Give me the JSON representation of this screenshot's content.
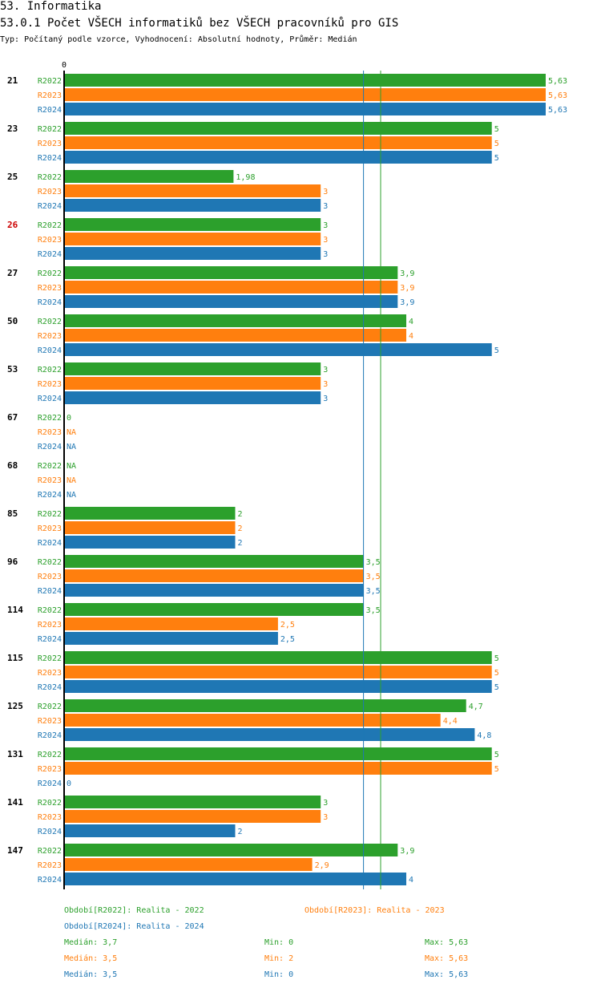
{
  "header": {
    "title": "53. Informatika",
    "subtitle": "53.0.1 Počet VŠECH informatiků bez VŠECH pracovníků pro GIS",
    "meta": "Typ: Počítaný podle vzorce, Vyhodnocení: Absolutní hodnoty, Průměr: Medián"
  },
  "colors": {
    "R2022": "#2ca02c",
    "R2023": "#ff7f0e",
    "R2024": "#1f77b4",
    "highlight": "#cc0000",
    "text": "#000000"
  },
  "chart_data": {
    "type": "bar",
    "orientation": "horizontal",
    "axis_zero_label": "0",
    "xlim": [
      0,
      5.63
    ],
    "highlight_category": "26",
    "categories": [
      "21",
      "23",
      "25",
      "26",
      "27",
      "50",
      "53",
      "67",
      "68",
      "85",
      "96",
      "114",
      "115",
      "125",
      "131",
      "141",
      "147"
    ],
    "series": [
      {
        "name": "R2022",
        "values": [
          5.63,
          5,
          1.98,
          3,
          3.9,
          4,
          3,
          0,
          null,
          2,
          3.5,
          3.5,
          5,
          4.7,
          5,
          3,
          3.9
        ],
        "labels": [
          "5,63",
          "5",
          "1,98",
          "3",
          "3,9",
          "4",
          "3",
          "0",
          "NA",
          "2",
          "3,5",
          "3,5",
          "5",
          "4,7",
          "5",
          "3",
          "3,9"
        ]
      },
      {
        "name": "R2023",
        "values": [
          5.63,
          5,
          3,
          3,
          3.9,
          4,
          3,
          null,
          null,
          2,
          3.5,
          2.5,
          5,
          4.4,
          5,
          3,
          2.9
        ],
        "labels": [
          "5,63",
          "5",
          "3",
          "3",
          "3,9",
          "4",
          "3",
          "NA",
          "NA",
          "2",
          "3,5",
          "2,5",
          "5",
          "4,4",
          "5",
          "3",
          "2,9"
        ]
      },
      {
        "name": "R2024",
        "values": [
          5.63,
          5,
          3,
          3,
          3.9,
          5,
          3,
          null,
          null,
          2,
          3.5,
          2.5,
          5,
          4.8,
          0,
          2,
          4
        ],
        "labels": [
          "5,63",
          "5",
          "3",
          "3",
          "3,9",
          "5",
          "3",
          "NA",
          "NA",
          "2",
          "3,5",
          "2,5",
          "5",
          "4,8",
          "0",
          "2",
          "4"
        ]
      }
    ],
    "reference_lines": [
      {
        "series": "R2022",
        "value": 3.7
      },
      {
        "series": "R2024",
        "value": 3.5
      }
    ]
  },
  "legend": {
    "items": [
      {
        "series": "R2022",
        "text": "Období[R2022]: Realita - 2022"
      },
      {
        "series": "R2023",
        "text": "Období[R2023]: Realita - 2023"
      },
      {
        "series": "R2024",
        "text": "Období[R2024]: Realita - 2024"
      }
    ],
    "stats": [
      {
        "series": "R2022",
        "median": "Medián: 3,7",
        "min": "Min: 0",
        "max": "Max: 5,63"
      },
      {
        "series": "R2023",
        "median": "Medián: 3,5",
        "min": "Min: 2",
        "max": "Max: 5,63"
      },
      {
        "series": "R2024",
        "median": "Medián: 3,5",
        "min": "Min: 0",
        "max": "Max: 5,63"
      }
    ]
  }
}
